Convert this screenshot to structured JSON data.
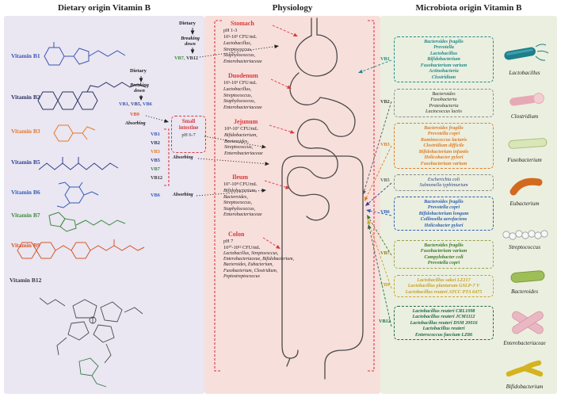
{
  "colors": {
    "red": "#d93a3a",
    "b1": "#3b57b0",
    "b2": "#2b3560",
    "b3": "#e07b28",
    "b5": "#31458c",
    "b6": "#2f5fb5",
    "b7": "#3f8a3f",
    "b9": "#d4582a",
    "b12": "#3b3b3b",
    "vb1": "#1f8b8b",
    "vb2": "#2b2b2b",
    "vb3": "#e07b28",
    "vb5": "#2b3f8c",
    "vb6": "#2f5fb5",
    "vb7": "#3f7a2e",
    "vb9": "#c9a227",
    "vb12": "#1e6b4a",
    "panel_dietary": "#eae6f2",
    "panel_physiology": "#f7dfdc",
    "panel_microbiota": "#ebefdf"
  },
  "titles": {
    "dietary": "Dietary origin Vitamin B",
    "physiology": "Physiology",
    "microbiota": "Microbiota origin Vitamin B"
  },
  "dietary": {
    "vitamins": [
      "Vitamin B1",
      "Vitamin B2",
      "Vitamin B3",
      "Vitamin B5",
      "Vitamin B6",
      "Vitamin B7",
      "Vitamin B9",
      "Vitamin B12"
    ],
    "flow_top": {
      "dietary": "Dietary",
      "breaking": "Breaking down",
      "vb7": "VB7,",
      "vb12": "VB12"
    },
    "flow_mid": {
      "dietary": "Dietary",
      "breaking": "Breaking down",
      "vb1": "VB1,",
      "vb5": "VB5,",
      "vb6": "VB6"
    },
    "vb9": "VB9",
    "absorbing": "Absorbing",
    "small_intestine": {
      "title": "Small intestine",
      "ph": "pH 6-7"
    },
    "absorb_list": [
      "VB1",
      "VB2",
      "VB3",
      "VB5",
      "VB7",
      "VB12"
    ],
    "vb6": "VB6"
  },
  "physiology": {
    "sections": [
      {
        "name": "Stomach",
        "ph": "pH 1-3",
        "cfu": "10¹-10³ CFU/mL",
        "species": [
          "Lactobacillus,",
          "Streptococcus,",
          "Staphylococcus,",
          "Enterobacteriaceae"
        ]
      },
      {
        "name": "Duodenum",
        "cfu": "10¹-10³ CFU/mL",
        "species": [
          "Lactobacillus,",
          "Streptococcus,",
          "Staphylococcus,",
          "Enterobacteriaceae"
        ]
      },
      {
        "name": "Jejunum",
        "cfu": "10⁴-10⁷ CFU/mL",
        "species": [
          "Bifidobacterium,",
          "Bacteroides,",
          "Streptococcus,",
          "Enterobacteriaceae"
        ]
      },
      {
        "name": "Ileum",
        "cfu": "10⁷-10⁸ CFU/mL",
        "species": [
          "Bifidobacterium,",
          "Bacteroides,",
          "Streptococcus,",
          "Staphylococcus,",
          "Enterobacteriaceae"
        ]
      },
      {
        "name": "Colon",
        "ph": "pH 7",
        "cfu": "10¹⁰-10¹² CFU/mL",
        "species": [
          "Lactobacillus, Streptococcus,",
          "Enterobacteriaceae, Bifidobacterium,",
          "Bacteroides, Eubacterium,",
          "Fusobacterium, Clostridium,",
          "Peptostreptococcus"
        ]
      }
    ]
  },
  "microbiota": {
    "entries": [
      {
        "vb": "VB1",
        "species": [
          "Bacteroides fragilis",
          "Prevotella",
          "Lactobacillus",
          "Bifidobacterium",
          "Fusobacterium varium",
          "Actinobacteria",
          "Clostridium"
        ]
      },
      {
        "vb": "VB2",
        "species": [
          "Bacteroides",
          "Fusobacteria",
          "Proteobacteria",
          "Lactococcus lactis"
        ]
      },
      {
        "vb": "VB3",
        "species": [
          "Bacteroides fragilis",
          "Prevotella copri",
          "Ruminococcus lactaris",
          "Clostridium difficile",
          "Bifidobacterium infantis",
          "Helicobacter pylori",
          "Fusobacterium varium"
        ]
      },
      {
        "vb": "VB5",
        "species": [
          "Escherichia coli",
          "Salmonella typhimurium"
        ]
      },
      {
        "vb": "VB6",
        "species": [
          "Bacteroides fragilis",
          "Prevotella copri",
          "Bifidobacterium longum",
          "Collinsella aerofaciens",
          "Helicobacter pylori"
        ]
      },
      {
        "vb": "VB7",
        "species": [
          "Bacteroides fragilis",
          "Fusobacterium varium",
          "Campylobacter coli",
          "Prevotella copri"
        ]
      },
      {
        "vb": "VB9",
        "species": [
          "Lactobacillus sakei LZ217",
          "Lactobacillus plantarum GSLP-7 V",
          "Lactobacillus reuteri ATCC PTA 6475"
        ]
      },
      {
        "vb": "VB12",
        "species": [
          "Lactobacillus reuteri CRL1098",
          "Lactobacillus reuteri JCM1112",
          "Lactobacillus reuteri DSM 20016",
          "Lactobacillus reuteri",
          "Enterococcus faecium LZ86"
        ]
      }
    ],
    "organisms": [
      "Lactobacillus",
      "Clostridium",
      "Fusobacterium",
      "Eubacterium",
      "Streptococcus",
      "Bacteroides",
      "Enterobacteriaceae",
      "Bifidobacterium"
    ]
  }
}
